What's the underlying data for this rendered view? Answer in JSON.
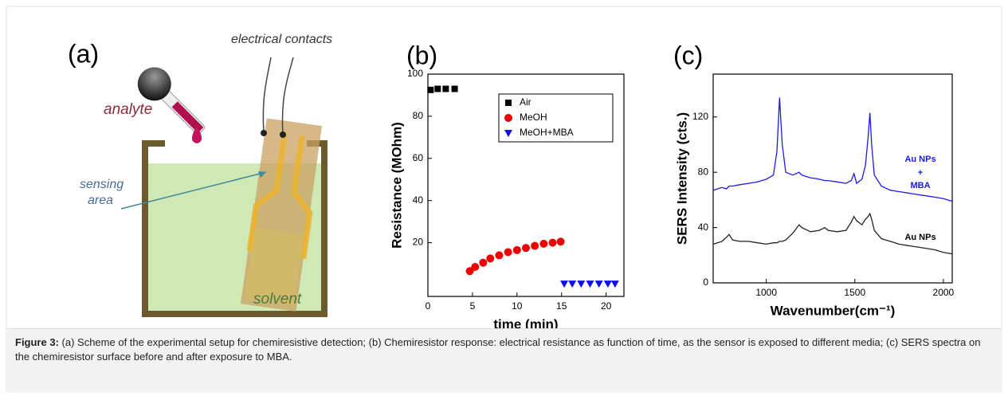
{
  "figure": {
    "panel_label": "(a)",
    "analyte": "analyte",
    "contacts": "electrical contacts",
    "sensing": [
      "sensing",
      "area"
    ],
    "solvent": "solvent"
  },
  "chart_data": [
    {
      "type": "scatter",
      "panel_label": "(b)",
      "x_label": "time (min)",
      "y_label": "Resistance (MOhm)",
      "xlim": [
        0,
        22
      ],
      "ylim": [
        -5.5,
        100
      ],
      "xticks": [
        0,
        5,
        10,
        15,
        20
      ],
      "yticks": [
        20,
        40,
        60,
        80,
        100
      ],
      "legend": "upper right",
      "series": [
        {
          "name": "Air",
          "color": "#000000",
          "marker": "square",
          "x": [
            0.3,
            1.1,
            2.0,
            3.0
          ],
          "values": [
            92.5,
            93,
            93,
            93
          ]
        },
        {
          "name": "MeOH",
          "color": "#ee0000",
          "marker": "circle",
          "x": [
            4.7,
            5.3,
            6.2,
            7.0,
            8.0,
            9.0,
            10.0,
            11.0,
            12.0,
            13.0,
            14.0,
            14.9
          ],
          "values": [
            6.5,
            8.5,
            10.5,
            12.5,
            14,
            15.5,
            16.5,
            17.5,
            18.5,
            19.5,
            20,
            20.5
          ]
        },
        {
          "name": "MeOH+MBA",
          "color": "#1010ee",
          "marker": "triangle",
          "x": [
            15.3,
            16.2,
            17.2,
            18.2,
            19.2,
            20.2,
            21.0
          ],
          "values": [
            0.5,
            0.5,
            0.5,
            0.5,
            0.5,
            0.5,
            0.5
          ]
        }
      ]
    },
    {
      "type": "line",
      "panel_label": "(c)",
      "x_label": "Wavenumber(cm⁻¹)",
      "y_label": "SERS Intensity (cts.)",
      "xlim": [
        700,
        2050
      ],
      "ylim": [
        0,
        151
      ],
      "xticks": [
        1000,
        1500,
        2000
      ],
      "yticks": [
        0,
        40,
        80,
        120
      ],
      "x": [
        700,
        725,
        750,
        775,
        790,
        810,
        850,
        900,
        950,
        1000,
        1040,
        1060,
        1075,
        1090,
        1110,
        1150,
        1185,
        1200,
        1250,
        1300,
        1330,
        1350,
        1400,
        1450,
        1480,
        1495,
        1510,
        1540,
        1560,
        1575,
        1585,
        1595,
        1610,
        1650,
        1700,
        1750,
        1800,
        1850,
        1900,
        1950,
        2000,
        2050
      ],
      "series": [
        {
          "color": "#1a1aee",
          "values": [
            67,
            68,
            69,
            68,
            70,
            70,
            71,
            72,
            73,
            75,
            78,
            95,
            134,
            100,
            80,
            78,
            80,
            78,
            76,
            75,
            74,
            74,
            73,
            72,
            74,
            79,
            72,
            75,
            85,
            105,
            123,
            100,
            78,
            70,
            67,
            66,
            65,
            64,
            63,
            62,
            61,
            59
          ]
        },
        {
          "color": "#222222",
          "values": [
            28,
            29,
            30,
            33,
            35,
            31,
            30,
            30,
            29,
            28,
            29,
            29,
            30,
            30,
            31,
            36,
            42,
            40,
            37,
            38,
            40,
            38,
            37,
            38,
            44,
            48,
            45,
            42,
            46,
            48,
            50,
            46,
            38,
            32,
            30,
            28,
            27,
            26,
            25,
            24,
            22,
            21
          ]
        }
      ],
      "annotations": [
        {
          "text": [
            "Au NPs",
            "+",
            "MBA"
          ],
          "color": "#1a1aee"
        },
        {
          "text": [
            "Au NPs"
          ],
          "color": "#000000"
        }
      ]
    }
  ],
  "caption": {
    "label": "Figure 3:",
    "text": "(a) Scheme of the experimental setup for chemiresistive detection; (b) Chemiresistor response: electrical resistance as function of time, as the sensor is exposed to different media; (c) SERS spectra on the chemiresistor surface before and after exposure to MBA."
  }
}
